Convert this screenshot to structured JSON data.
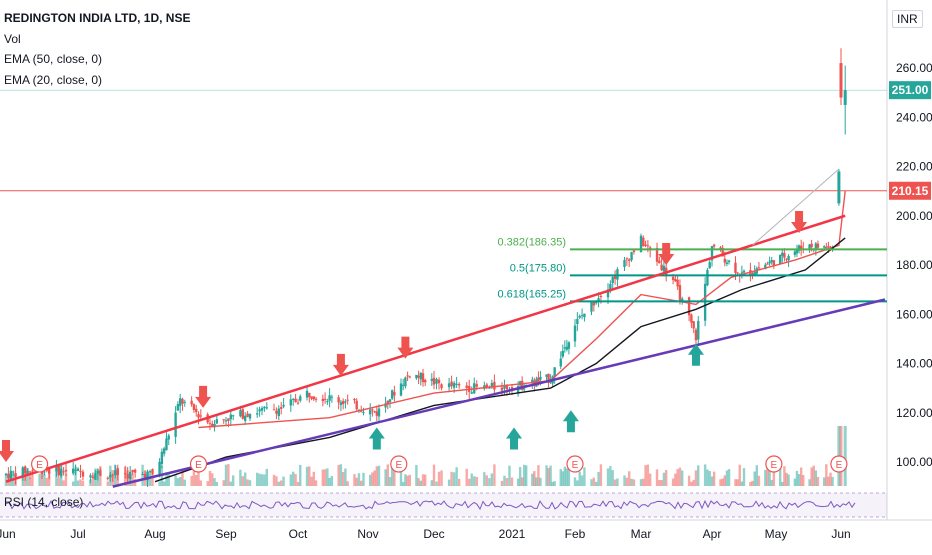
{
  "legend": {
    "title": "REDINGTON INDIA LTD, 1D, NSE",
    "vol": "Vol",
    "ema50": "EMA (50, close, 0)",
    "ema20": "EMA (20, close, 0)"
  },
  "currency": "INR",
  "rsi_label": "RSI (14, close)",
  "price_axis": {
    "ticks": [
      100,
      120,
      140,
      160,
      180,
      200,
      220,
      240,
      260
    ],
    "tick_labels": [
      "100.00",
      "120.00",
      "140.00",
      "160.00",
      "180.00",
      "200.00",
      "220.00",
      "240.00",
      "260.00"
    ],
    "last_price": "251.00",
    "hline_price": "210.15",
    "last_price_color": "#26a69a",
    "hline_color": "#ef5350"
  },
  "time_axis": [
    "Jun",
    "Jul",
    "Aug",
    "Sep",
    "Oct",
    "Nov",
    "Dec",
    "2021",
    "Feb",
    "Mar",
    "Apr",
    "May",
    "Jun"
  ],
  "fib_levels": [
    {
      "label": "0.382(186.35)",
      "price": 186.35,
      "color": "#4caf50"
    },
    {
      "label": "0.5(175.80)",
      "price": 175.8,
      "color": "#009688"
    },
    {
      "label": "0.618(165.25)",
      "price": 165.25,
      "color": "#009688"
    }
  ],
  "earnings_marker": "E",
  "colors": {
    "up": "#26a69a",
    "down": "#ef5350",
    "ema20": "#ef5350",
    "ema50": "#131722",
    "support": "#673ab7",
    "resistance": "#f23645",
    "rsi": "#7e57c2"
  },
  "chart_data": {
    "type": "candlestick",
    "title": "REDINGTON INDIA LTD, 1D, NSE",
    "ylim": [
      90,
      272
    ],
    "series": [
      {
        "name": "EMA (20, close, 0)",
        "points": [
          [
            "2020-08-20",
            114
          ],
          [
            "2020-10-15",
            118
          ],
          [
            "2020-12-01",
            128
          ],
          [
            "2021-01-20",
            133
          ],
          [
            "2021-02-10",
            150
          ],
          [
            "2021-03-01",
            168
          ],
          [
            "2021-03-25",
            164
          ],
          [
            "2021-04-10",
            175
          ],
          [
            "2021-05-10",
            182
          ],
          [
            "2021-05-31",
            188
          ],
          [
            "2021-06-03",
            210
          ]
        ]
      },
      {
        "name": "EMA (50, close, 0)",
        "points": [
          [
            "2020-08-01",
            92
          ],
          [
            "2020-09-01",
            102
          ],
          [
            "2020-10-15",
            110
          ],
          [
            "2020-12-01",
            123
          ],
          [
            "2021-01-20",
            130
          ],
          [
            "2021-02-10",
            140
          ],
          [
            "2021-03-01",
            155
          ],
          [
            "2021-03-25",
            162
          ],
          [
            "2021-04-15",
            170
          ],
          [
            "2021-05-15",
            178
          ],
          [
            "2021-06-03",
            191
          ]
        ]
      }
    ],
    "candles_sampled": [
      [
        "2020-06-01",
        94,
        96,
        92,
        95
      ],
      [
        "2020-06-15",
        96,
        98,
        94,
        97
      ],
      [
        "2020-07-01",
        97,
        98,
        95,
        96
      ],
      [
        "2020-07-15",
        96,
        97,
        93,
        95
      ],
      [
        "2020-08-01",
        94,
        96,
        92,
        95
      ],
      [
        "2020-08-12",
        100,
        131,
        99,
        125
      ],
      [
        "2020-08-25",
        122,
        124,
        113,
        116
      ],
      [
        "2020-09-10",
        116,
        121,
        113,
        120
      ],
      [
        "2020-09-25",
        121,
        124,
        118,
        122
      ],
      [
        "2020-10-05",
        123,
        130,
        121,
        128
      ],
      [
        "2020-10-20",
        128,
        132,
        124,
        125
      ],
      [
        "2020-11-05",
        122,
        126,
        118,
        120
      ],
      [
        "2020-11-20",
        126,
        141,
        125,
        136
      ],
      [
        "2020-12-05",
        134,
        136,
        130,
        131
      ],
      [
        "2020-12-20",
        131,
        133,
        128,
        130
      ],
      [
        "2021-01-05",
        130,
        132,
        128,
        131
      ],
      [
        "2021-01-20",
        132,
        136,
        131,
        134
      ],
      [
        "2021-02-01",
        136,
        158,
        135,
        156
      ],
      [
        "2021-02-15",
        160,
        176,
        158,
        172
      ],
      [
        "2021-03-01",
        180,
        201,
        178,
        190
      ],
      [
        "2021-03-15",
        178,
        183,
        170,
        174
      ],
      [
        "2021-03-25",
        158,
        162,
        148,
        151
      ],
      [
        "2021-04-01",
        170,
        192,
        168,
        188
      ],
      [
        "2021-04-15",
        175,
        180,
        170,
        176
      ],
      [
        "2021-05-01",
        178,
        184,
        175,
        182
      ],
      [
        "2021-05-15",
        186,
        193,
        182,
        188
      ],
      [
        "2021-05-28",
        184,
        190,
        181,
        187
      ],
      [
        "2021-05-31",
        205,
        219,
        204,
        218
      ],
      [
        "2021-06-01",
        262,
        268,
        245,
        248
      ],
      [
        "2021-06-03",
        245,
        261,
        233,
        251
      ]
    ],
    "last_price": 251.0,
    "reference_level": 210.15
  }
}
